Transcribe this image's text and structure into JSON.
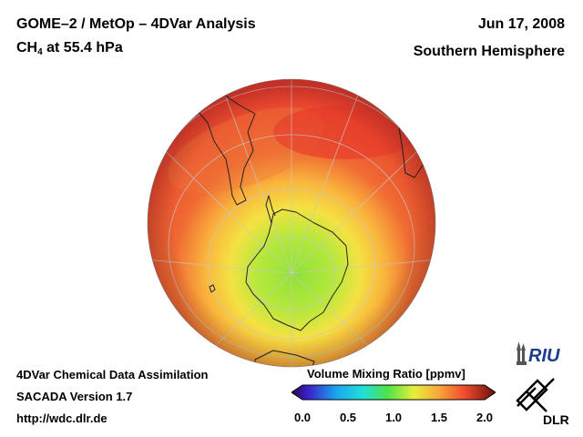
{
  "header": {
    "title_line1": "GOME–2 / MetOp – 4DVar Analysis",
    "title_line2_prefix": "CH",
    "title_line2_sub": "4",
    "title_line2_suffix": " at 55.4 hPa",
    "date": "Jun 17, 2008",
    "hemisphere": "Southern Hemisphere"
  },
  "footer": {
    "line1": "4DVar Chemical Data Assimilation",
    "line2": "SACADA Version 1.7",
    "line3": "http://wdc.dlr.de"
  },
  "colorbar": {
    "title": "Volume Mixing Ratio [ppmv]",
    "ticks": [
      "0.0",
      "0.5",
      "1.0",
      "1.5",
      "2.0"
    ],
    "min": 0.0,
    "max": 2.0
  },
  "logos": {
    "riu_text": "RIU",
    "dlr_text": "DLR"
  },
  "colors": {
    "high": "#e8382e",
    "mid": "#f7a83a",
    "low": "#9be23e",
    "coast": "#222222"
  }
}
